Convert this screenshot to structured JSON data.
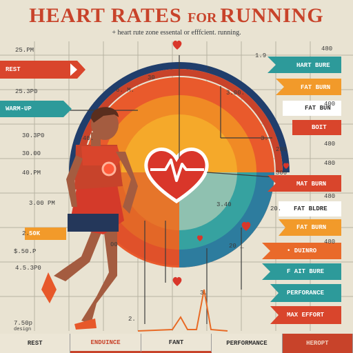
{
  "title": {
    "main": "HEART RATES ",
    "for": "FOR ",
    "run": "RUNNING"
  },
  "subtitle": "+ heart rute zone essental or efffcient. running.",
  "left_labels": [
    "25.PM",
    "25.3P0",
    "30.3P0",
    "30.00",
    "40.PM",
    "3.00 PM",
    "50K",
    "$.50.P",
    "4.5.3P0",
    "7.50p"
  ],
  "left_labels_extra": {
    "design_note": "design",
    "ptime": "2."
  },
  "left_tags": {
    "rest": "REST",
    "warm_up": "WARM-UP"
  },
  "right_labels": [
    "1.9",
    "480",
    "400",
    "480",
    "480",
    "480",
    "300",
    "280",
    "480"
  ],
  "right_tags": [
    "HART BURE",
    "FAT BURN",
    "FAT BUN",
    "BOIT",
    "MAT BURN",
    "FAT BLDRE",
    "FAT BURN",
    "• DUINRO",
    "F AIT BURE",
    "PERFORANCE",
    "MAX EFFORT"
  ],
  "chart_labels": [
    "40.",
    "2.",
    "6. M.",
    "30",
    "3.40",
    "3.",
    "3.00.",
    "20.",
    "00",
    "20 _",
    "2."
  ],
  "orbit_note": "3.",
  "bottom_labels": [
    "REST",
    "ENDUINCE",
    "FANT",
    "PERFORMANCE",
    "HEROPT"
  ],
  "bottom_red": "#c8432a",
  "colors": {
    "red": "#d23b2a",
    "orange": "#ef7d22",
    "teal": "#2d9a9a",
    "navy": "#203e6c",
    "brown": "#8c4a36"
  }
}
